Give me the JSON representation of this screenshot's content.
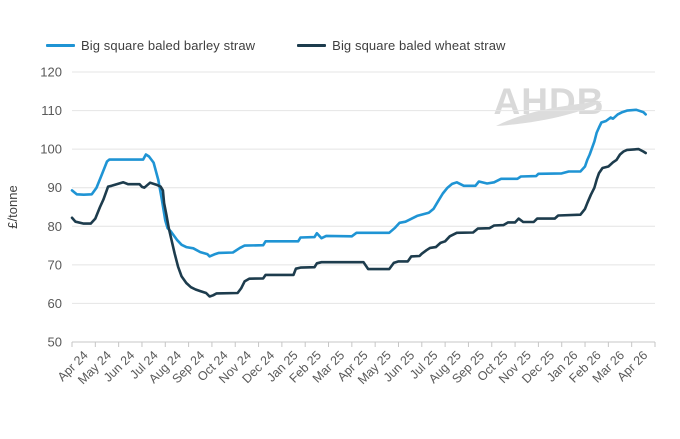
{
  "legend": {
    "items": [
      {
        "label": "Big square baled barley straw",
        "color": "#1F94D4"
      },
      {
        "label": "Big square baled wheat straw",
        "color": "#1D3C4D"
      }
    ]
  },
  "watermark": {
    "text": "AHDB",
    "color": "#d9d9d9"
  },
  "chart_data": {
    "type": "line",
    "title": "",
    "xlabel": "",
    "ylabel": "£/tonne",
    "ylim": [
      50,
      120
    ],
    "yticks": [
      50,
      60,
      70,
      80,
      90,
      100,
      110,
      120
    ],
    "grid": "horizontal",
    "legend_position": "top",
    "x_categories": [
      "Apr 24",
      "May 24",
      "Jun 24",
      "Jul 24",
      "Aug 24",
      "Sep 24",
      "Oct 24",
      "Nov 24",
      "Dec 24",
      "Jan 25",
      "Feb 25",
      "Mar 25",
      "Apr 25",
      "May 25",
      "Jun 25",
      "Jul 25",
      "Aug 25",
      "Sep 25",
      "Oct 25",
      "Nov 25",
      "Dec 25",
      "Jan 26",
      "Feb 26",
      "Mar 26",
      "Apr 26"
    ],
    "x_unit": "months (weekly price series, x in category units where 0 = start of Apr 24 and 25 = end of Apr 26)",
    "series": [
      {
        "name": "Big square baled barley straw",
        "color": "#1F94D4",
        "points": [
          [
            0,
            89.3
          ],
          [
            0.2,
            88.3
          ],
          [
            0.5,
            88.2
          ],
          [
            0.85,
            88.3
          ],
          [
            1.05,
            90
          ],
          [
            1.25,
            93
          ],
          [
            1.5,
            96.8
          ],
          [
            1.6,
            97.3
          ],
          [
            3.05,
            97.3
          ],
          [
            3.17,
            98.6
          ],
          [
            3.3,
            98.1
          ],
          [
            3.5,
            96.5
          ],
          [
            3.7,
            92
          ],
          [
            3.85,
            87
          ],
          [
            4,
            81.5
          ],
          [
            4.1,
            79.5
          ],
          [
            4.25,
            78.6
          ],
          [
            4.5,
            76.5
          ],
          [
            4.7,
            75.2
          ],
          [
            4.9,
            74.6
          ],
          [
            5.2,
            74.3
          ],
          [
            5.5,
            73.3
          ],
          [
            5.8,
            72.8
          ],
          [
            5.9,
            72.2
          ],
          [
            6.1,
            72.7
          ],
          [
            6.3,
            73.1
          ],
          [
            6.9,
            73.2
          ],
          [
            7.2,
            74.4
          ],
          [
            7.4,
            75
          ],
          [
            8.2,
            75.1
          ],
          [
            8.3,
            76.1
          ],
          [
            9.7,
            76.1
          ],
          [
            9.8,
            77.1
          ],
          [
            10.4,
            77.2
          ],
          [
            10.5,
            78.2
          ],
          [
            10.7,
            76.9
          ],
          [
            10.9,
            77.5
          ],
          [
            12,
            77.4
          ],
          [
            12.2,
            78.3
          ],
          [
            13.6,
            78.3
          ],
          [
            13.85,
            79.6
          ],
          [
            14.05,
            80.9
          ],
          [
            14.3,
            81.2
          ],
          [
            14.8,
            82.7
          ],
          [
            15.3,
            83.5
          ],
          [
            15.5,
            84.5
          ],
          [
            15.7,
            86.5
          ],
          [
            15.9,
            88.5
          ],
          [
            16.1,
            90
          ],
          [
            16.3,
            91
          ],
          [
            16.5,
            91.4
          ],
          [
            16.8,
            90.5
          ],
          [
            17.3,
            90.5
          ],
          [
            17.45,
            91.6
          ],
          [
            17.8,
            91.1
          ],
          [
            18.1,
            91.4
          ],
          [
            18.4,
            92.3
          ],
          [
            19.1,
            92.3
          ],
          [
            19.25,
            92.9
          ],
          [
            19.9,
            93
          ],
          [
            20,
            93.6
          ],
          [
            21,
            93.7
          ],
          [
            21.3,
            94.2
          ],
          [
            21.8,
            94.2
          ],
          [
            22,
            95.5
          ],
          [
            22.1,
            97.3
          ],
          [
            22.2,
            98.6
          ],
          [
            22.4,
            102
          ],
          [
            22.5,
            104.3
          ],
          [
            22.6,
            105.6
          ],
          [
            22.7,
            106.9
          ],
          [
            22.9,
            107.3
          ],
          [
            23.1,
            108.2
          ],
          [
            23.2,
            107.9
          ],
          [
            23.4,
            109
          ],
          [
            23.6,
            109.6
          ],
          [
            23.8,
            110
          ],
          [
            24.2,
            110.2
          ],
          [
            24.5,
            109.6
          ],
          [
            24.6,
            109
          ]
        ]
      },
      {
        "name": "Big square baled wheat straw",
        "color": "#1D3C4D",
        "points": [
          [
            0,
            82.2
          ],
          [
            0.15,
            81.2
          ],
          [
            0.5,
            80.7
          ],
          [
            0.8,
            80.7
          ],
          [
            1,
            82
          ],
          [
            1.2,
            85
          ],
          [
            1.35,
            87
          ],
          [
            1.55,
            90.3
          ],
          [
            1.7,
            90.5
          ],
          [
            2.2,
            91.4
          ],
          [
            2.4,
            90.9
          ],
          [
            2.9,
            90.9
          ],
          [
            3,
            90.2
          ],
          [
            3.1,
            90
          ],
          [
            3.35,
            91.3
          ],
          [
            3.6,
            90.8
          ],
          [
            3.8,
            90.3
          ],
          [
            3.9,
            89.3
          ],
          [
            3.95,
            86
          ],
          [
            4.05,
            83
          ],
          [
            4.15,
            79.5
          ],
          [
            4.25,
            76.9
          ],
          [
            4.4,
            73
          ],
          [
            4.55,
            69.5
          ],
          [
            4.7,
            67
          ],
          [
            4.9,
            65.3
          ],
          [
            5.1,
            64.2
          ],
          [
            5.3,
            63.6
          ],
          [
            5.5,
            63.2
          ],
          [
            5.75,
            62.7
          ],
          [
            5.9,
            61.8
          ],
          [
            6.05,
            62.1
          ],
          [
            6.2,
            62.6
          ],
          [
            7.1,
            62.7
          ],
          [
            7.25,
            63.9
          ],
          [
            7.4,
            65.7
          ],
          [
            7.6,
            66.4
          ],
          [
            8.2,
            66.5
          ],
          [
            8.3,
            67.4
          ],
          [
            9.5,
            67.4
          ],
          [
            9.6,
            69
          ],
          [
            9.8,
            69.3
          ],
          [
            10.4,
            69.4
          ],
          [
            10.5,
            70.4
          ],
          [
            10.7,
            70.7
          ],
          [
            12.5,
            70.7
          ],
          [
            12.7,
            68.9
          ],
          [
            13.6,
            68.9
          ],
          [
            13.8,
            70.5
          ],
          [
            14,
            70.9
          ],
          [
            14.4,
            70.9
          ],
          [
            14.55,
            72.2
          ],
          [
            14.9,
            72.3
          ],
          [
            15,
            72.9
          ],
          [
            15.2,
            73.8
          ],
          [
            15.35,
            74.4
          ],
          [
            15.6,
            74.6
          ],
          [
            15.8,
            75.7
          ],
          [
            16,
            76.1
          ],
          [
            16.2,
            77.4
          ],
          [
            16.5,
            78.3
          ],
          [
            17.2,
            78.4
          ],
          [
            17.4,
            79.4
          ],
          [
            17.9,
            79.5
          ],
          [
            18.1,
            80.2
          ],
          [
            18.5,
            80.3
          ],
          [
            18.7,
            81
          ],
          [
            19,
            81
          ],
          [
            19.15,
            82
          ],
          [
            19.35,
            81.1
          ],
          [
            19.8,
            81.1
          ],
          [
            19.95,
            82
          ],
          [
            20.7,
            82
          ],
          [
            20.85,
            82.8
          ],
          [
            21.8,
            83
          ],
          [
            22,
            84.5
          ],
          [
            22.1,
            86.1
          ],
          [
            22.25,
            88.2
          ],
          [
            22.4,
            90
          ],
          [
            22.5,
            92.1
          ],
          [
            22.6,
            93.8
          ],
          [
            22.75,
            95.1
          ],
          [
            23,
            95.5
          ],
          [
            23.2,
            96.6
          ],
          [
            23.35,
            97.2
          ],
          [
            23.5,
            98.6
          ],
          [
            23.65,
            99.4
          ],
          [
            23.8,
            99.8
          ],
          [
            24.3,
            100
          ],
          [
            24.5,
            99.4
          ],
          [
            24.6,
            99
          ]
        ]
      }
    ]
  }
}
